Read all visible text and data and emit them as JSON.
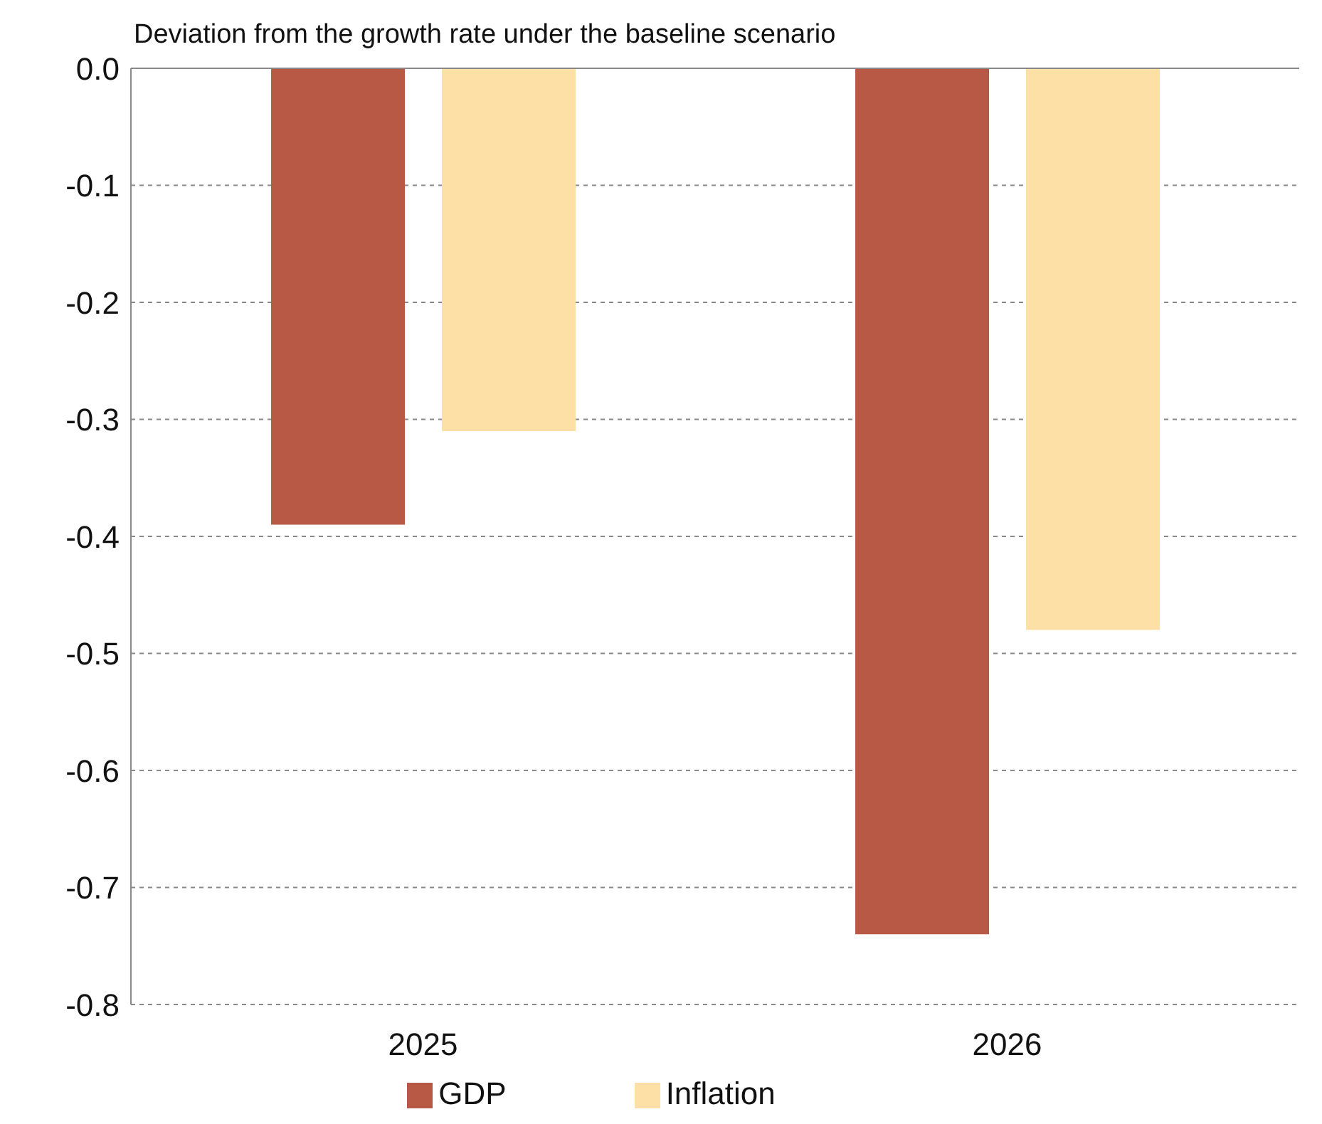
{
  "chart_data": {
    "type": "bar",
    "ylabel": "Deviation from the growth rate under the baseline scenario",
    "categories": [
      "2025",
      "2026"
    ],
    "series": [
      {
        "name": "GDP",
        "color": "#b85945",
        "values": [
          -0.39,
          -0.74
        ]
      },
      {
        "name": "Inflation",
        "color": "#fde0a6",
        "values": [
          -0.31,
          -0.48
        ]
      }
    ],
    "ylim": [
      -0.8,
      0
    ],
    "yticks": [
      -0.8,
      -0.7,
      -0.6,
      -0.5,
      -0.4,
      -0.3,
      -0.2,
      -0.1,
      {
        "value": 0,
        "label": "0.0"
      }
    ],
    "grid": "y",
    "legend": "bottom"
  }
}
